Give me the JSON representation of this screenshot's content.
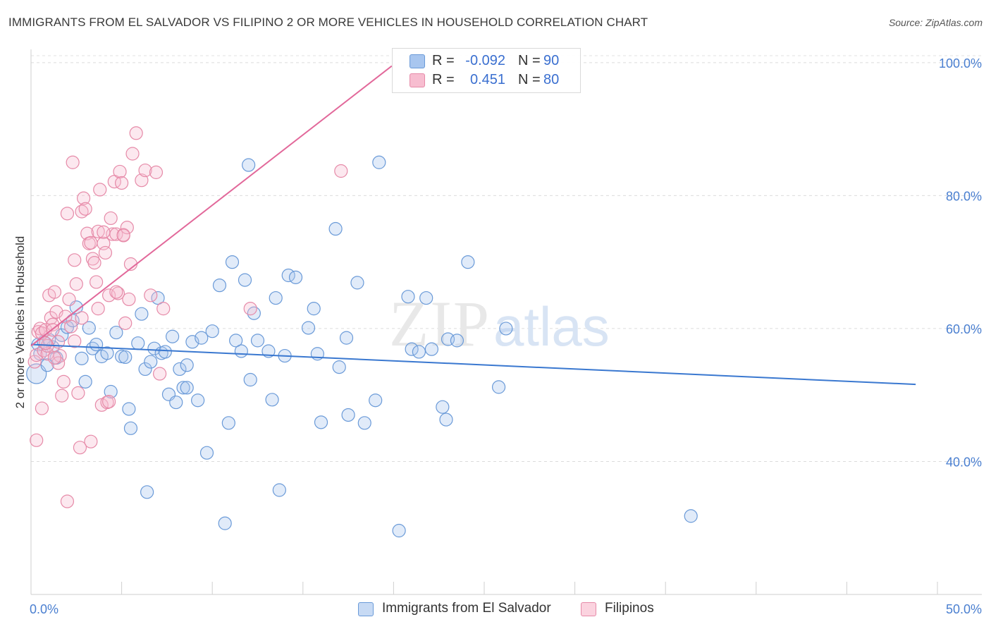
{
  "title": "IMMIGRANTS FROM EL SALVADOR VS FILIPINO 2 OR MORE VEHICLES IN HOUSEHOLD CORRELATION CHART",
  "source": "Source: ZipAtlas.com",
  "watermark": {
    "zip": "ZIP",
    "atlas": "atlas"
  },
  "legend_top": {
    "rows": [
      {
        "r_label": "R =",
        "r_value": "-0.092",
        "n_label": "N =",
        "n_value": "90",
        "color": "#a8c6ef",
        "border": "#6a9ad8"
      },
      {
        "r_label": "R =",
        "r_value": "0.451",
        "n_label": "N =",
        "n_value": "80",
        "color": "#f7bdd0",
        "border": "#e68aa8"
      }
    ]
  },
  "legend_bottom": [
    {
      "label": "Immigrants from El Salvador",
      "color": "#c7daf4",
      "border": "#6a9ad8"
    },
    {
      "label": "Filipinos",
      "color": "#fbd3df",
      "border": "#e68aa8"
    }
  ],
  "chart_data": {
    "type": "scatter",
    "title": "IMMIGRANTS FROM EL SALVADOR VS FILIPINO 2 OR MORE VEHICLES IN HOUSEHOLD CORRELATION CHART",
    "xlabel": "",
    "ylabel": "2 or more Vehicles in Household",
    "xlim": [
      0,
      50
    ],
    "ylim": [
      20,
      102
    ],
    "x_tick_labels": [
      "0.0%",
      "50.0%"
    ],
    "y_ticks": [
      40,
      60,
      80,
      100
    ],
    "y_tick_labels": [
      "40.0%",
      "60.0%",
      "80.0%",
      "100.0%"
    ],
    "grid": true,
    "series": [
      {
        "name": "Immigrants from El Salvador",
        "color": "#6a9ad8",
        "fill": "rgba(168,198,239,0.35)",
        "trend": {
          "x": [
            0.0,
            48.8
          ],
          "y": [
            57.6,
            51.6
          ]
        },
        "points": [
          [
            0.3,
            53.2
          ],
          [
            0.4,
            57.6
          ],
          [
            0.5,
            56.2
          ],
          [
            0.7,
            58.0
          ],
          [
            0.9,
            54.5
          ],
          [
            1.2,
            57.2
          ],
          [
            1.4,
            55.6
          ],
          [
            1.7,
            59.0
          ],
          [
            2.0,
            60.2
          ],
          [
            2.3,
            61.2
          ],
          [
            2.5,
            63.2
          ],
          [
            2.8,
            55.5
          ],
          [
            3.0,
            52.0
          ],
          [
            3.2,
            60.1
          ],
          [
            3.4,
            57.0
          ],
          [
            3.6,
            57.6
          ],
          [
            3.9,
            55.8
          ],
          [
            4.2,
            56.3
          ],
          [
            4.4,
            50.5
          ],
          [
            4.7,
            59.4
          ],
          [
            5.0,
            55.8
          ],
          [
            5.2,
            55.7
          ],
          [
            5.4,
            47.9
          ],
          [
            5.5,
            45.0
          ],
          [
            5.9,
            57.8
          ],
          [
            6.1,
            62.2
          ],
          [
            6.3,
            53.9
          ],
          [
            6.4,
            35.4
          ],
          [
            6.6,
            55.0
          ],
          [
            6.8,
            57.0
          ],
          [
            7.0,
            64.6
          ],
          [
            7.2,
            56.3
          ],
          [
            7.4,
            56.5
          ],
          [
            7.6,
            50.1
          ],
          [
            7.8,
            58.8
          ],
          [
            8.0,
            48.9
          ],
          [
            8.2,
            53.9
          ],
          [
            8.4,
            51.1
          ],
          [
            8.6,
            54.5
          ],
          [
            8.9,
            58.0
          ],
          [
            9.2,
            49.2
          ],
          [
            9.4,
            58.6
          ],
          [
            9.7,
            41.3
          ],
          [
            10.0,
            59.6
          ],
          [
            10.4,
            66.5
          ],
          [
            10.7,
            30.7
          ],
          [
            10.9,
            45.8
          ],
          [
            11.1,
            70.0
          ],
          [
            11.3,
            58.2
          ],
          [
            11.6,
            56.6
          ],
          [
            11.8,
            67.3
          ],
          [
            12.0,
            84.6
          ],
          [
            12.1,
            52.3
          ],
          [
            12.3,
            62.3
          ],
          [
            12.5,
            58.2
          ],
          [
            13.1,
            56.6
          ],
          [
            13.3,
            49.3
          ],
          [
            13.5,
            64.6
          ],
          [
            13.7,
            35.7
          ],
          [
            14.0,
            55.9
          ],
          [
            14.2,
            68.0
          ],
          [
            14.6,
            67.7
          ],
          [
            15.3,
            60.1
          ],
          [
            15.6,
            63.0
          ],
          [
            15.8,
            56.2
          ],
          [
            16.0,
            45.9
          ],
          [
            16.8,
            75.0
          ],
          [
            17.0,
            54.2
          ],
          [
            17.4,
            58.6
          ],
          [
            17.5,
            47.0
          ],
          [
            18.0,
            66.9
          ],
          [
            18.4,
            45.8
          ],
          [
            19.0,
            49.2
          ],
          [
            19.2,
            85.0
          ],
          [
            20.3,
            29.6
          ],
          [
            20.8,
            64.8
          ],
          [
            21.0,
            56.9
          ],
          [
            21.4,
            56.5
          ],
          [
            21.8,
            64.6
          ],
          [
            22.1,
            56.9
          ],
          [
            22.7,
            48.2
          ],
          [
            22.9,
            46.3
          ],
          [
            23.0,
            58.4
          ],
          [
            23.5,
            58.2
          ],
          [
            24.1,
            70.0
          ],
          [
            25.8,
            51.2
          ],
          [
            26.2,
            60.0
          ],
          [
            36.4,
            31.8
          ],
          [
            1.0,
            58.3
          ],
          [
            8.6,
            51.1
          ]
        ]
      },
      {
        "name": "Filipinos",
        "color": "#e68aa8",
        "fill": "rgba(247,189,208,0.35)",
        "trend": {
          "x": [
            0.0,
            19.9
          ],
          "y": [
            57.4,
            99.5
          ]
        },
        "points": [
          [
            0.2,
            55.0
          ],
          [
            0.3,
            56.0
          ],
          [
            0.4,
            59.5
          ],
          [
            0.5,
            60.0
          ],
          [
            0.6,
            59.3
          ],
          [
            0.7,
            56.7
          ],
          [
            0.8,
            59.8
          ],
          [
            0.9,
            56.2
          ],
          [
            1.0,
            65.0
          ],
          [
            1.1,
            61.6
          ],
          [
            1.2,
            60.6
          ],
          [
            1.3,
            65.5
          ],
          [
            1.4,
            62.5
          ],
          [
            1.5,
            58.0
          ],
          [
            1.6,
            55.9
          ],
          [
            1.7,
            49.9
          ],
          [
            1.8,
            52.0
          ],
          [
            1.9,
            61.8
          ],
          [
            2.0,
            77.3
          ],
          [
            2.1,
            64.4
          ],
          [
            2.2,
            60.3
          ],
          [
            2.3,
            85.0
          ],
          [
            2.4,
            70.3
          ],
          [
            2.5,
            66.7
          ],
          [
            2.6,
            50.3
          ],
          [
            2.7,
            42.1
          ],
          [
            2.8,
            77.6
          ],
          [
            2.9,
            79.6
          ],
          [
            3.0,
            78.0
          ],
          [
            3.1,
            74.3
          ],
          [
            3.2,
            72.8
          ],
          [
            3.3,
            43.0
          ],
          [
            3.4,
            70.5
          ],
          [
            3.5,
            69.9
          ],
          [
            3.6,
            67.0
          ],
          [
            3.7,
            74.6
          ],
          [
            3.8,
            80.9
          ],
          [
            3.9,
            48.5
          ],
          [
            4.0,
            72.8
          ],
          [
            4.1,
            71.4
          ],
          [
            4.2,
            48.9
          ],
          [
            4.3,
            65.0
          ],
          [
            4.4,
            76.6
          ],
          [
            4.5,
            74.2
          ],
          [
            4.6,
            82.1
          ],
          [
            4.7,
            74.2
          ],
          [
            4.8,
            65.3
          ],
          [
            4.9,
            83.6
          ],
          [
            5.0,
            81.9
          ],
          [
            5.1,
            74.1
          ],
          [
            5.2,
            60.8
          ],
          [
            5.3,
            75.2
          ],
          [
            5.4,
            64.4
          ],
          [
            5.5,
            69.7
          ],
          [
            5.6,
            86.3
          ],
          [
            5.8,
            89.4
          ],
          [
            6.1,
            82.3
          ],
          [
            6.3,
            83.8
          ],
          [
            6.6,
            65.0
          ],
          [
            6.9,
            83.5
          ],
          [
            7.1,
            53.2
          ],
          [
            7.3,
            63.0
          ],
          [
            17.1,
            83.7
          ],
          [
            0.3,
            43.2
          ],
          [
            0.6,
            48.0
          ],
          [
            0.9,
            57.4
          ],
          [
            1.2,
            59.8
          ],
          [
            1.5,
            54.8
          ],
          [
            2.0,
            34.0
          ],
          [
            2.4,
            58.1
          ],
          [
            2.8,
            61.6
          ],
          [
            3.3,
            72.9
          ],
          [
            3.7,
            63.0
          ],
          [
            4.0,
            74.5
          ],
          [
            4.3,
            49.0
          ],
          [
            4.7,
            65.5
          ],
          [
            5.1,
            74.0
          ],
          [
            1.3,
            55.6
          ],
          [
            0.8,
            57.8
          ],
          [
            12.1,
            63.0
          ]
        ]
      }
    ]
  }
}
